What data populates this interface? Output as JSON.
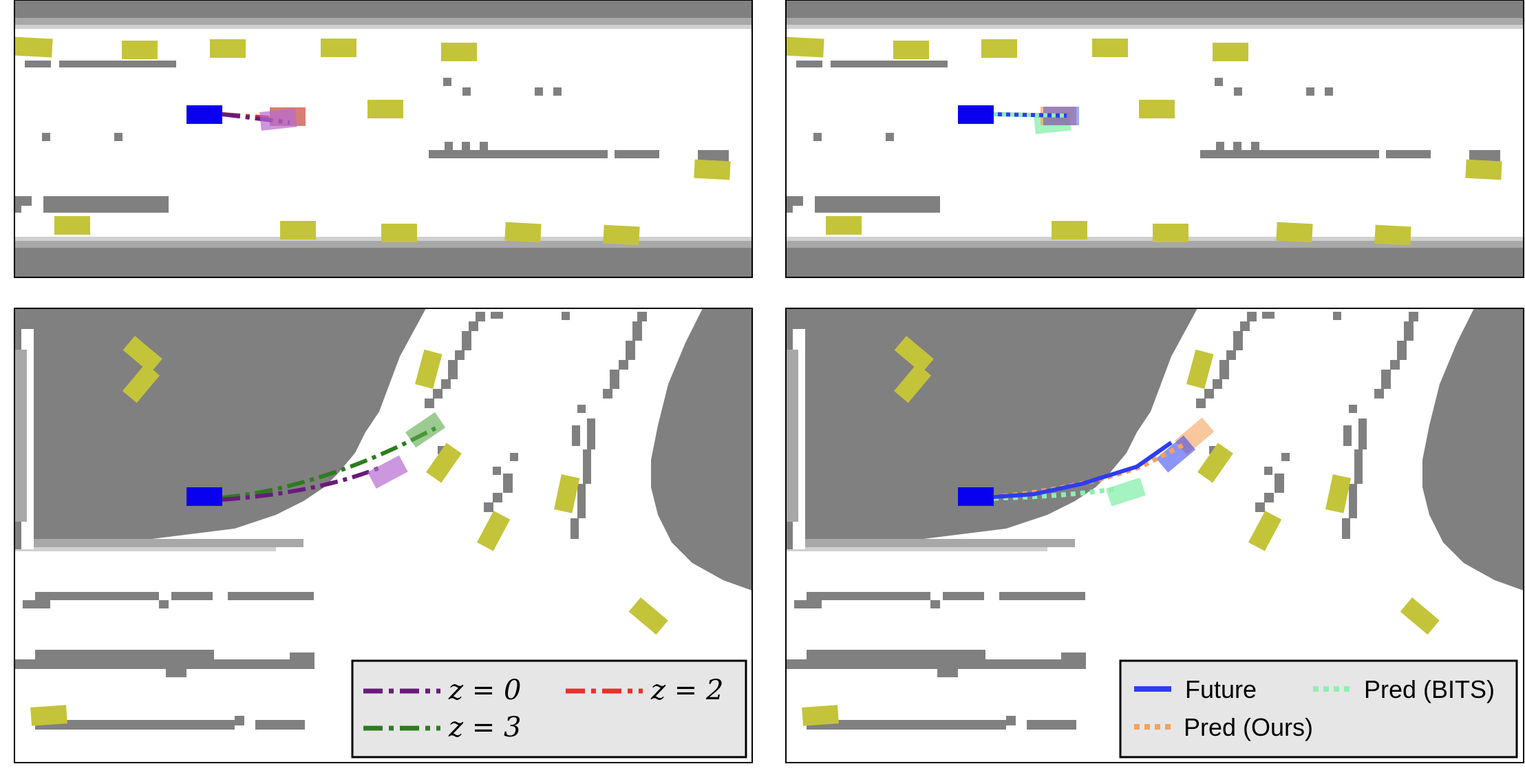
{
  "legend_left": {
    "entries": [
      {
        "label": "z = 0",
        "color": "#6a1b7a"
      },
      {
        "label": "z = 2",
        "color": "#e8312a"
      },
      {
        "label": "z = 3",
        "color": "#2d7d1e"
      }
    ]
  },
  "legend_right": {
    "entries": [
      {
        "label": "Future",
        "color": "#2f3cf2"
      },
      {
        "label": "Pred (BITS)",
        "color": "#8df0b0"
      },
      {
        "label": "Pred (Ours)",
        "color": "#f5a25a"
      }
    ]
  },
  "colors": {
    "road": "#808080",
    "vehicle": "#c4c43a",
    "ego": "#0a00f0"
  }
}
